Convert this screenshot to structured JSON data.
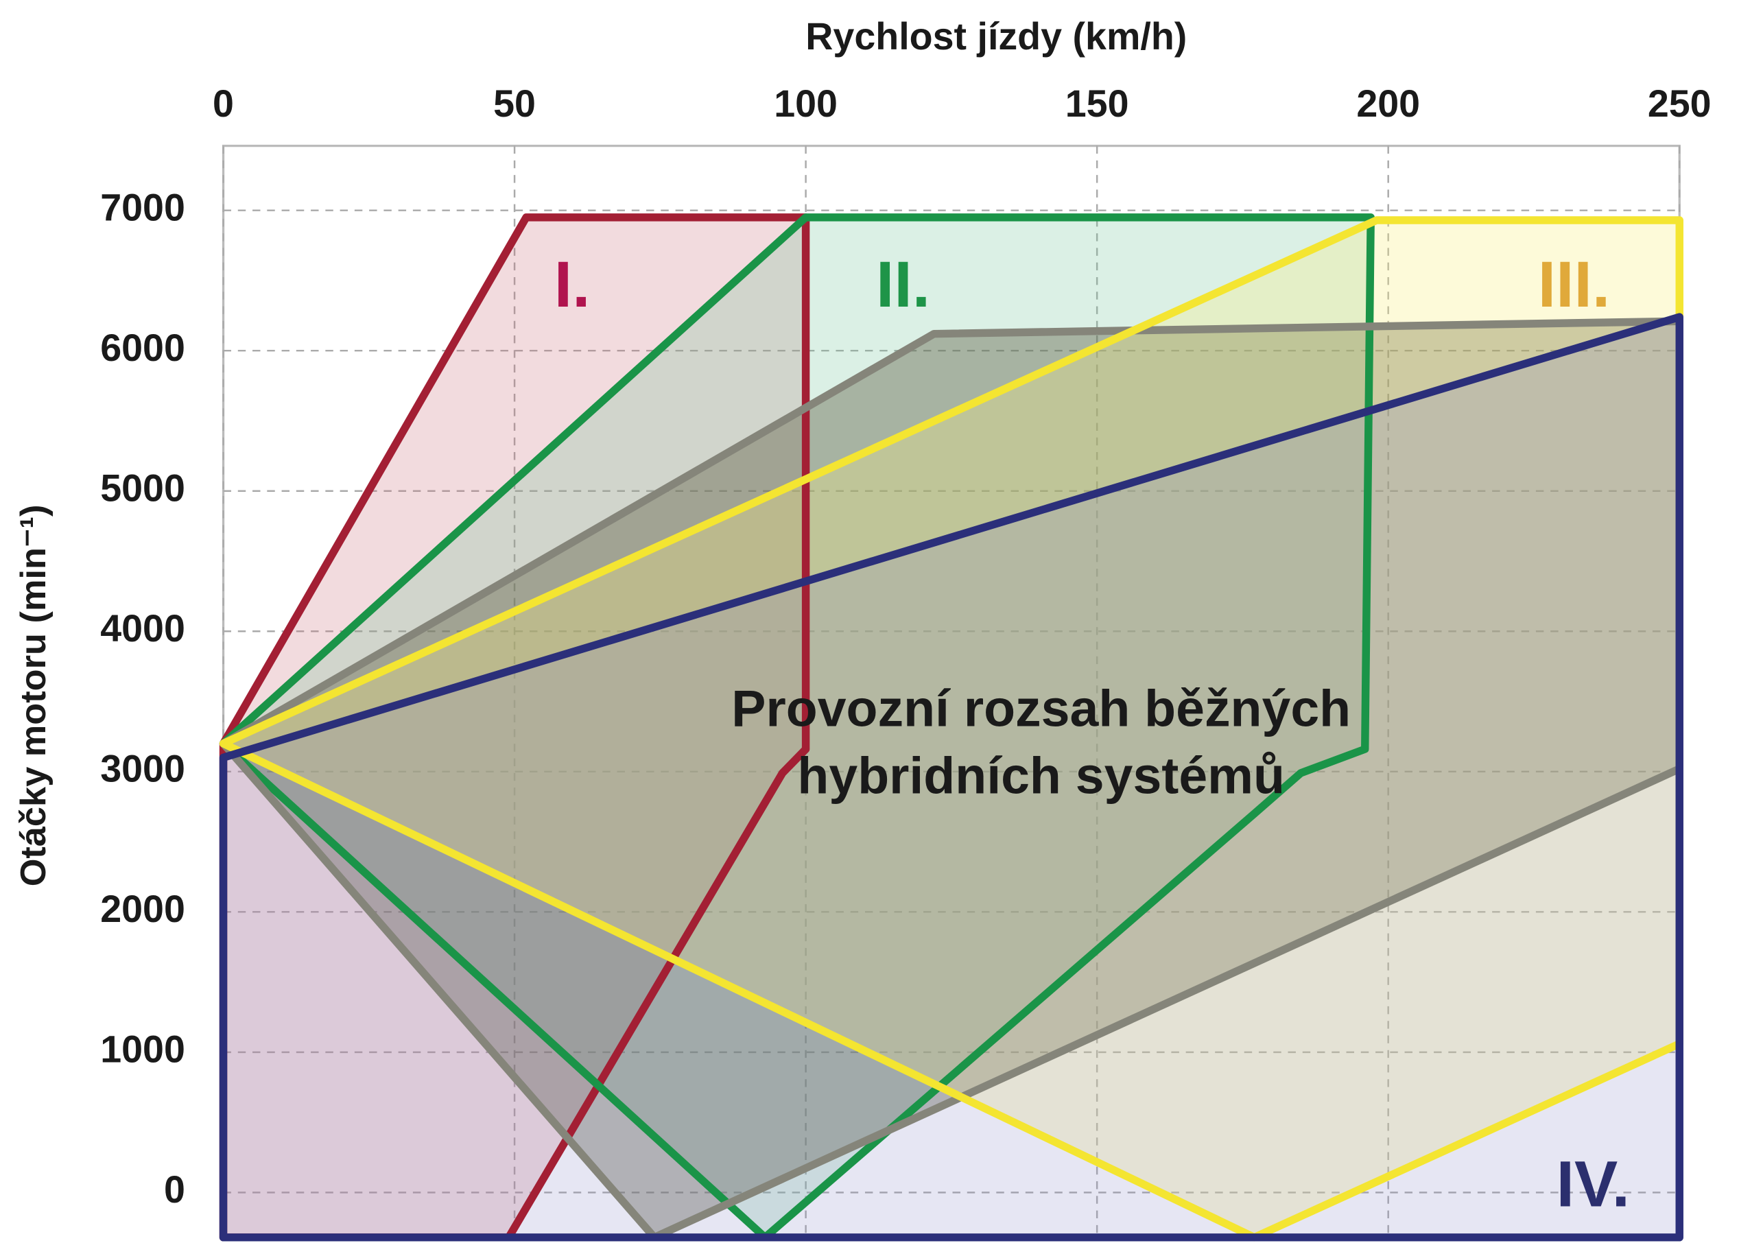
{
  "chart_data": {
    "type": "polygon",
    "xlabel": "Rychlost jízdy (km/h)",
    "ylabel": "Otáčky motoru (min⁻¹)",
    "annotation": [
      "Provozní rozsah běžných",
      "hybridních systémů"
    ],
    "xlim": [
      0,
      250
    ],
    "ylim": [
      -320,
      7460
    ],
    "xticks": [
      0,
      50,
      100,
      150,
      200,
      250
    ],
    "yticks": [
      0,
      1000,
      2000,
      3000,
      4000,
      5000,
      6000,
      7000
    ],
    "grid": true,
    "series": [
      {
        "name": "I.",
        "color": "#a31f34",
        "label_color": "#b0144e",
        "fill": "rgba(205,110,125,0.25)",
        "x": [
          0,
          52,
          100,
          100,
          96,
          49,
          0
        ],
        "y": [
          3200,
          6950,
          6950,
          3160,
          2990,
          -320,
          -320
        ]
      },
      {
        "name": "II.",
        "color": "#1a9448",
        "label_color": "#1e9448",
        "fill": "rgba(110,195,150,0.25)",
        "x": [
          0,
          100,
          197,
          196,
          185,
          177,
          93
        ],
        "y": [
          3200,
          6950,
          6950,
          3160,
          2990,
          2700,
          -320
        ]
      },
      {
        "color": "#85857a",
        "fill": "rgba(95,95,70,0.42)",
        "x": [
          0,
          122,
          250,
          250,
          74
        ],
        "y": [
          3200,
          6120,
          6210,
          3020,
          -320
        ]
      },
      {
        "name": "III.",
        "color": "#f4e531",
        "label_color": "#e0a93a",
        "fill": "rgba(250,240,130,0.3)",
        "x": [
          0,
          198,
          250,
          250,
          177
        ],
        "y": [
          3200,
          6930,
          6930,
          1060,
          -320
        ]
      },
      {
        "name": "IV.",
        "color": "#2b2f7a",
        "label_color": "#2b2f6e",
        "fill": "rgba(140,140,200,0.22)",
        "x": [
          0,
          250,
          250,
          0
        ],
        "y": [
          3100,
          6240,
          -320,
          -320
        ]
      }
    ]
  }
}
